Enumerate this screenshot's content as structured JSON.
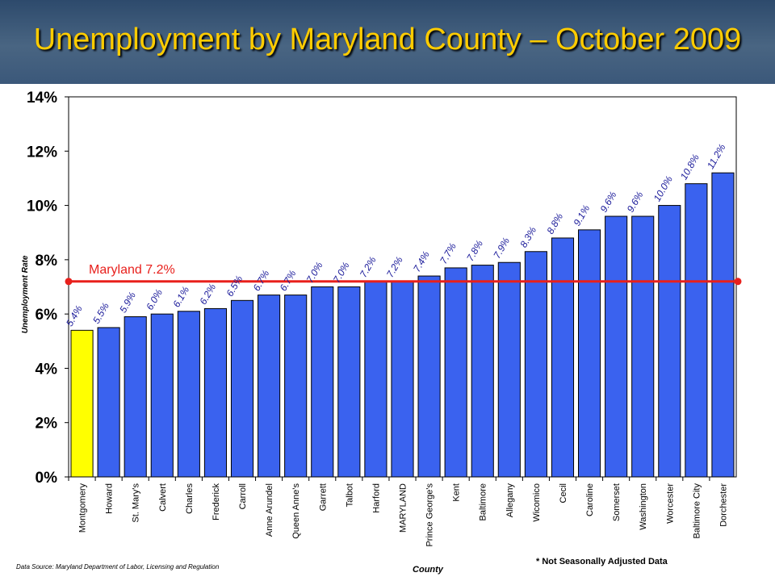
{
  "header": {
    "title": "Unemployment by Maryland County – October 2009"
  },
  "footer": {
    "source": "Data Source: Maryland Department of Labor, Licensing and Regulation",
    "note": "* Not  Seasonally  Adjusted  Data"
  },
  "chart_data": {
    "type": "bar",
    "categories": [
      "Montgomery",
      "Howard",
      "St. Mary's",
      "Calvert",
      "Charles",
      "Frederick",
      "Carroll",
      "Anne Arundel",
      "Queen Anne's",
      "Garrett",
      "Talbot",
      "Harford",
      "MARYLAND",
      "Prince George's",
      "Kent",
      "Baltimore",
      "Allegany",
      "Wicomico",
      "Cecil",
      "Caroline",
      "Somerset",
      "Washington",
      "Worcester",
      "Baltimore City",
      "Dorchester"
    ],
    "values": [
      5.4,
      5.5,
      5.9,
      6.0,
      6.1,
      6.2,
      6.5,
      6.7,
      6.7,
      7.0,
      7.0,
      7.2,
      7.2,
      7.4,
      7.7,
      7.8,
      7.9,
      8.3,
      8.8,
      9.1,
      9.6,
      9.6,
      10.0,
      10.8,
      11.2
    ],
    "data_labels": [
      "5.4%",
      "5.5%",
      "5.9%",
      "6.0%",
      "6.1%",
      "6.2%",
      "6.5%",
      "6.7%",
      "6.7%",
      "7.0%",
      "7.0%",
      "7.2%",
      "7.2%",
      "7.4%",
      "7.7%",
      "7.8%",
      "7.9%",
      "8.3%",
      "8.8%",
      "9.1%",
      "9.6%",
      "9.6%",
      "10.0%",
      "10.8%",
      "11.2%"
    ],
    "xlabel": "County",
    "ylabel": "Unemployment  Rate",
    "ylim": [
      0,
      14
    ],
    "yticks": [
      0,
      2,
      4,
      6,
      8,
      10,
      12,
      14
    ],
    "ytick_labels": [
      "0%",
      "2%",
      "4%",
      "6%",
      "8%",
      "10%",
      "12%",
      "14%"
    ],
    "grid": false,
    "bar_color": "#3a62ef",
    "highlight_index": 0,
    "highlight_color": "#ffff00",
    "reference_line": {
      "value": 7.2,
      "label": "Maryland 7.2%",
      "color": "#e8201c"
    }
  }
}
